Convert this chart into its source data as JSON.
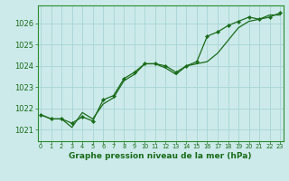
{
  "title": "Graphe pression niveau de la mer (hPa)",
  "background_color": "#cceaea",
  "grid_color": "#aad4d4",
  "line_color": "#1a6b1a",
  "border_color": "#2d8c2d",
  "x_ticks": [
    0,
    1,
    2,
    3,
    4,
    5,
    6,
    7,
    8,
    9,
    10,
    11,
    12,
    13,
    14,
    15,
    16,
    17,
    18,
    19,
    20,
    21,
    22,
    23
  ],
  "y_ticks": [
    1021,
    1022,
    1023,
    1024,
    1025,
    1026
  ],
  "ylim": [
    1020.45,
    1026.85
  ],
  "xlim": [
    -0.3,
    23.3
  ],
  "line1_y": [
    1021.7,
    1021.5,
    1021.5,
    1021.1,
    1021.8,
    1021.5,
    1022.2,
    1022.5,
    1023.3,
    1023.6,
    1024.1,
    1024.1,
    1023.9,
    1023.6,
    1024.0,
    1024.1,
    1024.2,
    1024.6,
    1025.2,
    1025.8,
    1026.1,
    1026.2,
    1026.4,
    1026.4
  ],
  "line2_y": [
    1021.7,
    1021.5,
    1021.5,
    1021.3,
    1021.6,
    1021.4,
    1022.4,
    1022.6,
    1023.4,
    1023.7,
    1024.1,
    1024.1,
    1024.0,
    1023.7,
    1024.0,
    1024.2,
    1025.4,
    1025.6,
    1025.9,
    1026.1,
    1026.3,
    1026.2,
    1026.3,
    1026.5
  ],
  "xlabel_fontsize": 6.5,
  "ytick_fontsize": 6.0,
  "xtick_fontsize": 4.8
}
